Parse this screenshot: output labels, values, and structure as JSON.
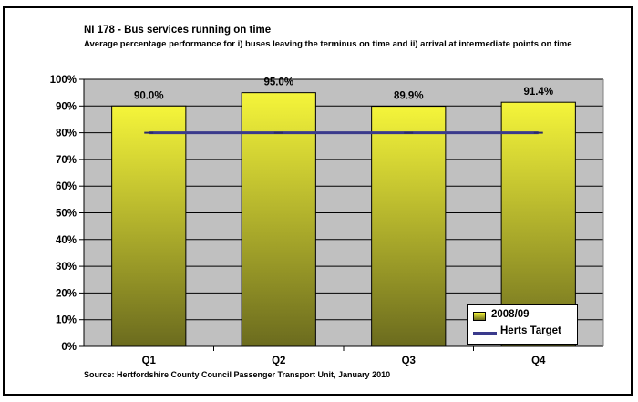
{
  "chart_data": {
    "type": "bar",
    "title": "NI 178 - Bus services running on time",
    "subtitle": "Average percentage performance for i) buses leaving the terminus on time and ii) arrival at intermediate points on time",
    "source": "Source: Hertfordshire County Council Passenger Transport Unit, January 2010",
    "categories": [
      "Q1",
      "Q2",
      "Q3",
      "Q4"
    ],
    "series": [
      {
        "name": "2008/09",
        "type": "bar",
        "values": [
          90.0,
          95.0,
          89.9,
          91.4
        ],
        "labels": [
          "90.0%",
          "95.0%",
          "89.9%",
          "91.4%"
        ],
        "color_top": "#f5f53a",
        "color_bottom": "#6b6b1e"
      },
      {
        "name": "Herts Target",
        "type": "line",
        "values": [
          80,
          80,
          80,
          80
        ],
        "color": "#3a3a8c"
      }
    ],
    "y_ticks": [
      "0%",
      "10%",
      "20%",
      "30%",
      "40%",
      "50%",
      "60%",
      "70%",
      "80%",
      "90%",
      "100%"
    ],
    "ylim": [
      0,
      100
    ],
    "plot_background": "#c0c0c0",
    "grid": true,
    "legend_position": "bottom-right"
  }
}
